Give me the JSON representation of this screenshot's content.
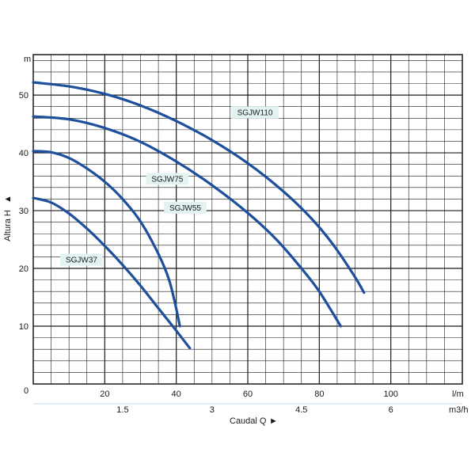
{
  "chart_data": {
    "type": "line",
    "y_unit": "m",
    "x_unit_primary": "l/m",
    "x_unit_secondary": "m3/h",
    "ylabel": "Altura H",
    "xlabel": "Caudal Q",
    "ylabel_arrow": "▲",
    "xlabel_arrow": "►",
    "origin_label": "0",
    "xlim": [
      0,
      120
    ],
    "ylim": [
      0,
      57
    ],
    "y_ticks": [
      10,
      20,
      30,
      40,
      50
    ],
    "x_ticks_primary": [
      20,
      40,
      60,
      80,
      100
    ],
    "x_ticks_secondary": [
      1.5,
      3,
      4.5,
      6
    ],
    "grid": true,
    "line_color": "#1e4f9c",
    "label_bg_color": "#e3f3f1",
    "series": [
      {
        "name": "SGJW110",
        "points": [
          [
            0,
            52.2
          ],
          [
            10,
            51.5
          ],
          [
            20,
            50.2
          ],
          [
            30,
            48.2
          ],
          [
            40,
            45.5
          ],
          [
            50,
            42.2
          ],
          [
            60,
            38.2
          ],
          [
            70,
            33.3
          ],
          [
            78,
            28.5
          ],
          [
            84,
            24
          ],
          [
            90,
            18.5
          ],
          [
            92.5,
            15.8
          ]
        ],
        "label_at": [
          62,
          47
        ]
      },
      {
        "name": "SGJW75",
        "points": [
          [
            0,
            46.3
          ],
          [
            10,
            45.8
          ],
          [
            20,
            44.3
          ],
          [
            30,
            41.9
          ],
          [
            40,
            38.5
          ],
          [
            50,
            34.4
          ],
          [
            60,
            29.6
          ],
          [
            68,
            25
          ],
          [
            75,
            20
          ],
          [
            80,
            16
          ],
          [
            86,
            10
          ]
        ],
        "label_at": [
          37.5,
          35.5
        ]
      },
      {
        "name": "SGJW55",
        "points": [
          [
            0,
            40.3
          ],
          [
            5,
            40.1
          ],
          [
            10,
            39.1
          ],
          [
            15,
            37.3
          ],
          [
            20,
            35
          ],
          [
            25,
            32
          ],
          [
            30,
            28.1
          ],
          [
            35,
            22.5
          ],
          [
            38,
            18
          ],
          [
            40,
            13
          ],
          [
            41,
            10
          ]
        ],
        "label_at": [
          42.5,
          30.5
        ]
      },
      {
        "name": "SGJW37",
        "points": [
          [
            0,
            32.2
          ],
          [
            5,
            31.4
          ],
          [
            10,
            29.5
          ],
          [
            15,
            26.9
          ],
          [
            20,
            23.9
          ],
          [
            25,
            20.6
          ],
          [
            30,
            17
          ],
          [
            35,
            13.1
          ],
          [
            39,
            10
          ],
          [
            43.8,
            6.2
          ]
        ],
        "label_at": [
          13.5,
          21.5
        ]
      }
    ]
  }
}
